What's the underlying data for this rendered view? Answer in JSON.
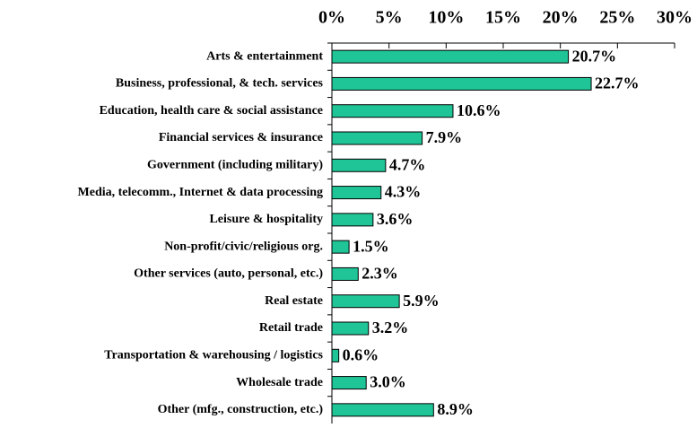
{
  "chart_data": {
    "type": "bar",
    "orientation": "horizontal",
    "color": "#1fc597",
    "categories": [
      "Arts & entertainment",
      "Business, professional, & tech. services",
      "Education, health care & social assistance",
      "Financial services & insurance",
      "Government (including military)",
      "Media, telecomm., Internet & data processing",
      "Leisure & hospitality",
      "Non-profit/civic/religious org.",
      "Other services (auto, personal, etc.)",
      "Real estate",
      "Retail trade",
      "Transportation & warehousing / logistics",
      "Wholesale trade",
      "Other (mfg., construction, etc.)"
    ],
    "values": [
      20.7,
      22.7,
      10.6,
      7.9,
      4.7,
      4.3,
      3.6,
      1.5,
      2.3,
      5.9,
      3.2,
      0.6,
      3.0,
      8.9
    ],
    "value_labels": [
      "20.7%",
      "22.7%",
      "10.6%",
      "7.9%",
      "4.7%",
      "4.3%",
      "3.6%",
      "1.5%",
      "2.3%",
      "5.9%",
      "3.2%",
      "0.6%",
      "3.0%",
      "8.9%"
    ],
    "xlim": [
      0,
      30
    ],
    "xticks": [
      {
        "value": 0,
        "label": "0%"
      },
      {
        "value": 5,
        "label": "5%"
      },
      {
        "value": 10,
        "label": "10%"
      },
      {
        "value": 15,
        "label": "15%"
      },
      {
        "value": 20,
        "label": "20%"
      },
      {
        "value": 25,
        "label": "25%"
      },
      {
        "value": 30,
        "label": "30%"
      }
    ]
  }
}
